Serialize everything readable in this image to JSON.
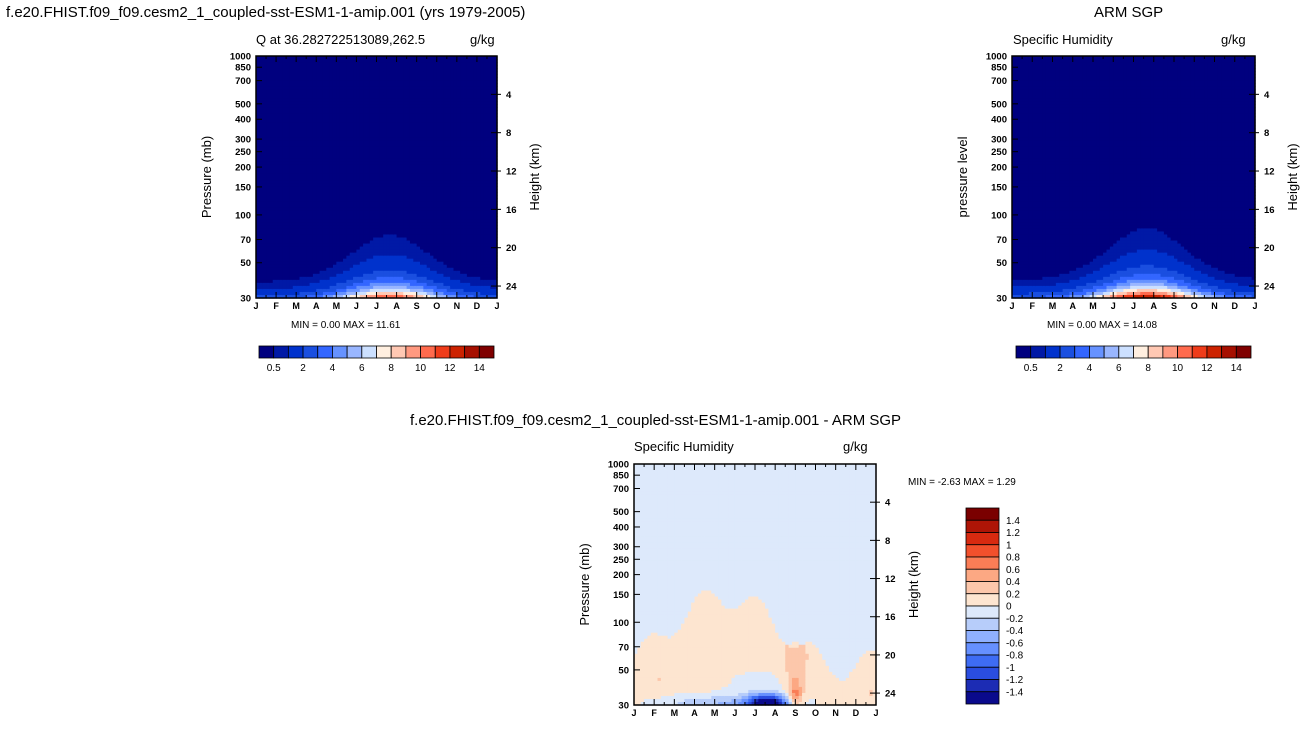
{
  "page": {
    "case_title": "f.e20.FHIST.f09_f09.cesm2_1_coupled-sst-ESM1-1-amip.001 (yrs 1979-2005)",
    "obs_title": "ARM SGP",
    "diff_title": "f.e20.FHIST.f09_f09.cesm2_1_coupled-sst-ESM1-1-amip.001 - ARM SGP"
  },
  "colors": {
    "seq": [
      "#00007f",
      "#0019a6",
      "#0032cc",
      "#1a4fe0",
      "#3366ff",
      "#6692ff",
      "#99b6ff",
      "#cce0ff",
      "#ffefe0",
      "#ffc8b3",
      "#ff9980",
      "#ff6a4d",
      "#ef3c1a",
      "#cc2200",
      "#a60f00",
      "#7f0000"
    ],
    "div": [
      "#0a0a8c",
      "#1c2cb4",
      "#2a4de0",
      "#3e6cf4",
      "#6690ff",
      "#8fb0ff",
      "#b7cdfa",
      "#dde9fb",
      "#fde5d0",
      "#fcc7ab",
      "#fca883",
      "#fa7d56",
      "#f2502c",
      "#d82a10",
      "#ae1506",
      "#7a0000"
    ]
  },
  "chart_data": [
    {
      "id": "model",
      "type": "heatmap",
      "title": "Q at 36.282722513089,262.5",
      "units": "g/kg",
      "ylabel": "Pressure (mb)",
      "y2label": "Height (km)",
      "months": [
        "J",
        "F",
        "M",
        "A",
        "M",
        "J",
        "J",
        "A",
        "S",
        "O",
        "N",
        "D",
        "J"
      ],
      "pressure_ticks": [
        "30",
        "50",
        "70",
        "100",
        "150",
        "200",
        "250",
        "300",
        "400",
        "500",
        "700",
        "850",
        "1000"
      ],
      "height_ticks": [
        "24",
        "20",
        "16",
        "12",
        "8",
        "4"
      ],
      "stats": "MIN =    0.00  MAX =   11.61",
      "min": 0.0,
      "max": 11.61,
      "colorbar_labels": [
        "0.5",
        "2",
        "4",
        "6",
        "8",
        "10",
        "12",
        "14"
      ]
    },
    {
      "id": "obs",
      "type": "heatmap",
      "title": "Specific Humidity",
      "units": "g/kg",
      "ylabel": "pressure level",
      "y2label": "Height (km)",
      "months": [
        "J",
        "F",
        "M",
        "A",
        "M",
        "J",
        "J",
        "A",
        "S",
        "O",
        "N",
        "D",
        "J"
      ],
      "pressure_ticks": [
        "30",
        "50",
        "70",
        "100",
        "150",
        "200",
        "250",
        "300",
        "400",
        "500",
        "700",
        "850",
        "1000"
      ],
      "height_ticks": [
        "24",
        "20",
        "16",
        "12",
        "8",
        "4"
      ],
      "stats": "MIN =    0.00  MAX =   14.08",
      "min": 0.0,
      "max": 14.08,
      "colorbar_labels": [
        "0.5",
        "2",
        "4",
        "6",
        "8",
        "10",
        "12",
        "14"
      ]
    },
    {
      "id": "diff",
      "type": "heatmap",
      "title": "Specific Humidity",
      "units": "g/kg",
      "ylabel": "Pressure (mb)",
      "y2label": "Height (km)",
      "months": [
        "J",
        "F",
        "M",
        "A",
        "M",
        "J",
        "J",
        "A",
        "S",
        "O",
        "N",
        "D",
        "J"
      ],
      "pressure_ticks": [
        "30",
        "50",
        "70",
        "100",
        "150",
        "200",
        "250",
        "300",
        "400",
        "500",
        "700",
        "850",
        "1000"
      ],
      "height_ticks": [
        "24",
        "20",
        "16",
        "12",
        "8",
        "4"
      ],
      "stats": "MIN =   -2.63  MAX =    1.29",
      "min": -2.63,
      "max": 1.29,
      "colorbar_labels": [
        "1.4",
        "1.2",
        "1",
        "0.8",
        "0.6",
        "0.4",
        "0.2",
        "0",
        "-0.2",
        "-0.4",
        "-0.6",
        "-0.8",
        "-1",
        "-1.2",
        "-1.4"
      ]
    }
  ]
}
